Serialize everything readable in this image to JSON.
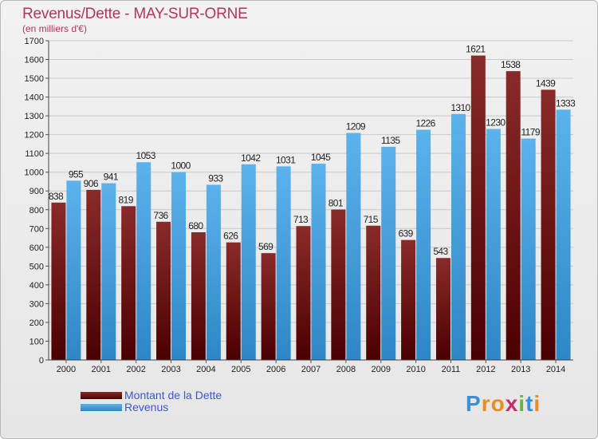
{
  "title": "Revenus/Dette - MAY-SUR-ORNE",
  "subtitle": "(en milliers d'€)",
  "legend": [
    {
      "label": "Montant de la Dette",
      "color": "#6e1212"
    },
    {
      "label": "Revenus",
      "color": "#4ba3e0"
    }
  ],
  "logo": {
    "text": "Proxiti",
    "letters": [
      "P",
      "r",
      "o",
      "x",
      "i",
      "t",
      "i"
    ],
    "colors": [
      "#3a8fd6",
      "#f08a1c",
      "#f08a1c",
      "#cc2b6b",
      "#6cb33f",
      "#3a8fd6",
      "#f08a1c"
    ]
  },
  "colors": {
    "dette": "#6e1212",
    "revenus": "#4ba3e0",
    "title": "#b3345f",
    "grid": "#c8c8c8"
  },
  "chart_data": {
    "type": "bar",
    "categories": [
      "2000",
      "2001",
      "2002",
      "2003",
      "2004",
      "2005",
      "2006",
      "2007",
      "2008",
      "2009",
      "2010",
      "2011",
      "2012",
      "2013",
      "2014"
    ],
    "series": [
      {
        "name": "Montant de la Dette",
        "values": [
          838,
          906,
          819,
          736,
          680,
          626,
          569,
          713,
          801,
          715,
          639,
          543,
          1621,
          1538,
          1439
        ]
      },
      {
        "name": "Revenus",
        "values": [
          955,
          941,
          1053,
          1000,
          933,
          1042,
          1031,
          1045,
          1209,
          1135,
          1226,
          1310,
          1230,
          1179,
          1333
        ]
      }
    ],
    "ylim": [
      0,
      1700
    ],
    "yticks": [
      0,
      100,
      200,
      300,
      400,
      500,
      600,
      700,
      800,
      900,
      1000,
      1100,
      1200,
      1300,
      1400,
      1500,
      1600,
      1700
    ],
    "grid": true,
    "legend_position": "bottom-left"
  }
}
